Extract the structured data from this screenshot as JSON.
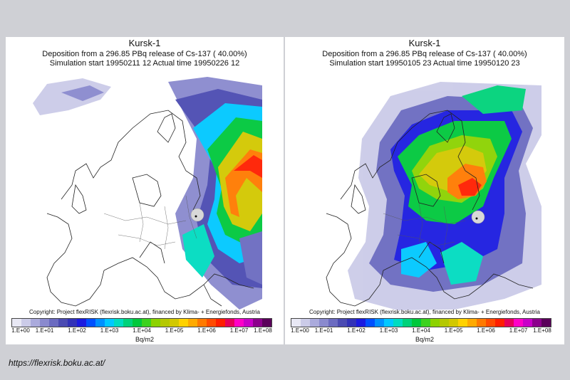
{
  "panels": [
    {
      "title": "Kursk-1",
      "subtitle": "Deposition from a  296.85 PBq release of Cs-137 ( 40.00%)",
      "simulation": "Simulation start 19950211 12   Actual time  19950226 12",
      "copyright": "Copyright: Project flexRISK (flexrisk.boku.ac.at), financed by Klima- + Energiefonds, Austria"
    },
    {
      "title": "Kursk-1",
      "subtitle": "Deposition from a  296.85 PBq release of Cs-137 ( 40.00%)",
      "simulation": "Simulation start 19950105 23   Actual time  19950120 23",
      "copyright": "Copyright: Project flexRISK (flexrisk.boku.ac.at), financed by Klima- + Energiefonds, Austria"
    }
  ],
  "colorbar": {
    "ticks": [
      "1.E+00",
      "1.E+01",
      "1.E+02",
      "1.E+03",
      "1.E+04",
      "1.E+05",
      "1.E+06",
      "1.E+07",
      "1.E+08"
    ],
    "unit": "Bq/m2",
    "colors": [
      "#e8e8f4",
      "#cbcbe8",
      "#aaaadc",
      "#8a8ace",
      "#6b6bc0",
      "#4b4bb2",
      "#3232b8",
      "#1b1be0",
      "#0050ff",
      "#0090ff",
      "#00c8ff",
      "#00dcc0",
      "#00d27a",
      "#00c83c",
      "#3cd21e",
      "#8cd200",
      "#b4c800",
      "#d2c800",
      "#ffd200",
      "#ffaa00",
      "#ff7a00",
      "#ff4b00",
      "#ff1e00",
      "#e6005a",
      "#ff00c8",
      "#c800c8",
      "#8c008c",
      "#5a005a"
    ]
  },
  "source_url": "https://flexrisk.boku.ac.at/"
}
